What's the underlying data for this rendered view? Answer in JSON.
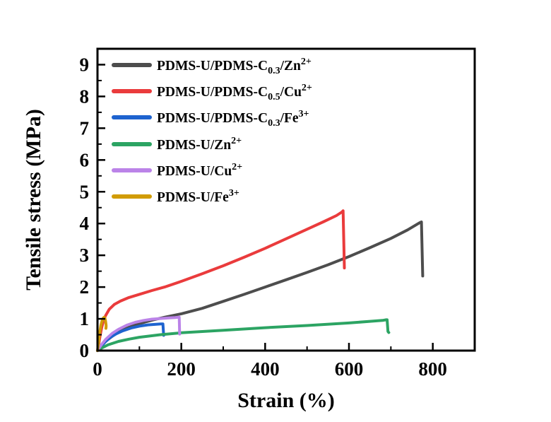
{
  "chart_data": {
    "type": "line",
    "title": "",
    "xlabel": "Strain (%)",
    "ylabel": "Tensile stress (MPa)",
    "xlim": [
      0,
      900
    ],
    "ylim": [
      0,
      9.5
    ],
    "x_major_ticks": [
      0,
      200,
      400,
      600,
      800
    ],
    "x_minor_ticks": [
      100,
      300,
      500,
      700
    ],
    "y_major_ticks": [
      0,
      1,
      2,
      3,
      4,
      5,
      6,
      7,
      8,
      9
    ],
    "y_minor_ticks": [
      0.5,
      1.5,
      2.5,
      3.5,
      4.5,
      5.5,
      6.5,
      7.5,
      8.5
    ],
    "grid": false,
    "legend_position": "top-left",
    "frame_color": "#000000",
    "series": [
      {
        "name": "PDMS-U/PDMS-C0.3/Zn2+",
        "label_parts": [
          {
            "t": "PDMS-U/PDMS-C"
          },
          {
            "t": "0.3",
            "style": "sub"
          },
          {
            "t": "/Zn"
          },
          {
            "t": "2+",
            "style": "sup"
          }
        ],
        "color": "#4d4d4d",
        "break_point": {
          "strain": 773,
          "stress": 4.05,
          "drop_to": 2.35
        },
        "points": [
          [
            0,
            0
          ],
          [
            8,
            0.12
          ],
          [
            20,
            0.3
          ],
          [
            40,
            0.5
          ],
          [
            60,
            0.65
          ],
          [
            80,
            0.76
          ],
          [
            100,
            0.85
          ],
          [
            130,
            0.96
          ],
          [
            160,
            1.05
          ],
          [
            200,
            1.16
          ],
          [
            250,
            1.33
          ],
          [
            300,
            1.55
          ],
          [
            350,
            1.77
          ],
          [
            400,
            2.0
          ],
          [
            450,
            2.23
          ],
          [
            500,
            2.46
          ],
          [
            550,
            2.7
          ],
          [
            600,
            2.96
          ],
          [
            650,
            3.24
          ],
          [
            700,
            3.53
          ],
          [
            740,
            3.8
          ],
          [
            768,
            4.02
          ],
          [
            773,
            4.05
          ],
          [
            776,
            2.35
          ]
        ]
      },
      {
        "name": "PDMS-U/PDMS-C0.5/Cu2+",
        "label_parts": [
          {
            "t": "PDMS-U/PDMS-C"
          },
          {
            "t": "0.5",
            "style": "sub"
          },
          {
            "t": "/Cu"
          },
          {
            "t": "2+",
            "style": "sup"
          }
        ],
        "color": "#ea3b3c",
        "break_point": {
          "strain": 586,
          "stress": 4.4,
          "drop_to": 2.6
        },
        "points": [
          [
            0,
            0
          ],
          [
            3,
            0.2
          ],
          [
            6,
            0.45
          ],
          [
            10,
            0.72
          ],
          [
            15,
            0.98
          ],
          [
            20,
            1.12
          ],
          [
            28,
            1.3
          ],
          [
            40,
            1.45
          ],
          [
            55,
            1.56
          ],
          [
            75,
            1.67
          ],
          [
            100,
            1.77
          ],
          [
            130,
            1.89
          ],
          [
            160,
            2.0
          ],
          [
            200,
            2.18
          ],
          [
            250,
            2.42
          ],
          [
            300,
            2.67
          ],
          [
            350,
            2.94
          ],
          [
            400,
            3.22
          ],
          [
            450,
            3.52
          ],
          [
            500,
            3.82
          ],
          [
            540,
            4.06
          ],
          [
            570,
            4.25
          ],
          [
            583,
            4.36
          ],
          [
            586,
            4.4
          ],
          [
            589,
            2.6
          ]
        ]
      },
      {
        "name": "PDMS-U/PDMS-C0.3/Fe3+",
        "label_parts": [
          {
            "t": "PDMS-U/PDMS-C"
          },
          {
            "t": "0.3",
            "style": "sub"
          },
          {
            "t": "/Fe"
          },
          {
            "t": "3+",
            "style": "sup"
          }
        ],
        "color": "#1e63cf",
        "break_point": {
          "strain": 156,
          "stress": 0.84,
          "drop_to": 0.48
        },
        "points": [
          [
            0,
            0
          ],
          [
            8,
            0.12
          ],
          [
            18,
            0.27
          ],
          [
            30,
            0.41
          ],
          [
            45,
            0.53
          ],
          [
            60,
            0.62
          ],
          [
            80,
            0.71
          ],
          [
            100,
            0.77
          ],
          [
            120,
            0.81
          ],
          [
            140,
            0.83
          ],
          [
            152,
            0.84
          ],
          [
            156,
            0.84
          ],
          [
            158,
            0.48
          ]
        ]
      },
      {
        "name": "PDMS-U/Zn2+",
        "label_parts": [
          {
            "t": "PDMS-U/Zn"
          },
          {
            "t": "2+",
            "style": "sup"
          }
        ],
        "color": "#2ca463",
        "break_point": {
          "strain": 691,
          "stress": 0.97,
          "drop_to": 0.57
        },
        "points": [
          [
            0,
            0
          ],
          [
            10,
            0.08
          ],
          [
            25,
            0.18
          ],
          [
            50,
            0.29
          ],
          [
            75,
            0.36
          ],
          [
            100,
            0.42
          ],
          [
            150,
            0.5
          ],
          [
            200,
            0.56
          ],
          [
            250,
            0.6
          ],
          [
            300,
            0.64
          ],
          [
            400,
            0.72
          ],
          [
            500,
            0.79
          ],
          [
            600,
            0.87
          ],
          [
            650,
            0.92
          ],
          [
            680,
            0.95
          ],
          [
            689,
            0.97
          ],
          [
            691,
            0.97
          ],
          [
            693,
            0.6
          ],
          [
            695,
            0.57
          ]
        ]
      },
      {
        "name": "PDMS-U/Cu2+",
        "label_parts": [
          {
            "t": "PDMS-U/Cu"
          },
          {
            "t": "2+",
            "style": "sup"
          }
        ],
        "color": "#bb83e8",
        "break_point": {
          "strain": 195,
          "stress": 1.05,
          "drop_to": 0.52
        },
        "points": [
          [
            0,
            0
          ],
          [
            8,
            0.16
          ],
          [
            20,
            0.36
          ],
          [
            35,
            0.54
          ],
          [
            50,
            0.67
          ],
          [
            70,
            0.8
          ],
          [
            90,
            0.89
          ],
          [
            110,
            0.95
          ],
          [
            130,
            0.99
          ],
          [
            150,
            1.01
          ],
          [
            170,
            1.03
          ],
          [
            185,
            1.04
          ],
          [
            193,
            1.05
          ],
          [
            195,
            1.05
          ],
          [
            196,
            0.52
          ]
        ]
      },
      {
        "name": "PDMS-U/Fe3+",
        "label_parts": [
          {
            "t": "PDMS-U/Fe"
          },
          {
            "t": "3+",
            "style": "sup"
          }
        ],
        "color": "#d19c05",
        "break_point": {
          "strain": 16,
          "stress": 1.05,
          "drop_to": 0.7
        },
        "points": [
          [
            0,
            0
          ],
          [
            2,
            0.2
          ],
          [
            4,
            0.45
          ],
          [
            6,
            0.63
          ],
          [
            8,
            0.78
          ],
          [
            10,
            0.89
          ],
          [
            12,
            0.97
          ],
          [
            14,
            1.03
          ],
          [
            16,
            1.05
          ],
          [
            17.5,
            1.03
          ],
          [
            18.5,
            0.98
          ],
          [
            19.5,
            0.9
          ],
          [
            20.5,
            0.8
          ],
          [
            20.5,
            0.74
          ],
          [
            20,
            0.7
          ]
        ]
      }
    ]
  }
}
